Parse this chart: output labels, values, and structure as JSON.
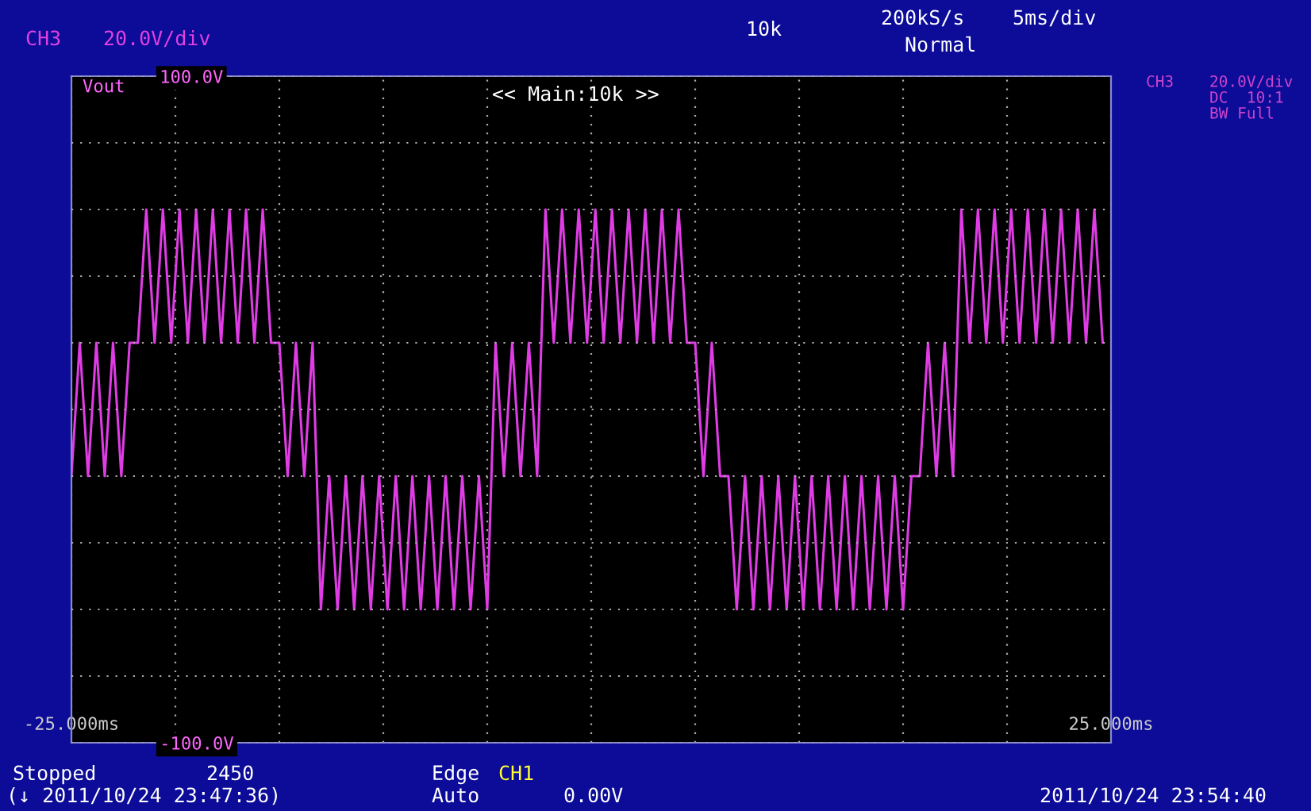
{
  "chart_data": {
    "type": "line",
    "series": [
      {
        "color": "#e03ce6",
        "x": [
          -25.0,
          -24.6,
          -24.2,
          -23.8,
          -23.4,
          -23.0,
          -22.6,
          -22.2,
          -21.8,
          -21.4,
          -21.0,
          -20.6,
          -20.2,
          -19.8,
          -19.4,
          -19.0,
          -18.6,
          -18.2,
          -17.8,
          -17.4,
          -17.0,
          -16.6,
          -16.2,
          -15.8,
          -15.4,
          -15.0,
          -14.6,
          -14.2,
          -13.8,
          -13.4,
          -13.0,
          -12.6,
          -12.2,
          -11.8,
          -11.4,
          -11.0,
          -10.6,
          -10.2,
          -9.8,
          -9.4,
          -9.0,
          -8.6,
          -8.2,
          -7.8,
          -7.4,
          -7.0,
          -6.6,
          -6.2,
          -5.8,
          -5.4,
          -5.0,
          -4.6,
          -4.2,
          -3.8,
          -3.4,
          -3.0,
          -2.6,
          -2.2,
          -1.8,
          -1.4,
          -1.0,
          -0.6,
          -0.2,
          0.2,
          0.6,
          1.0,
          1.4,
          1.8,
          2.2,
          2.6,
          3.0,
          3.4,
          3.8,
          4.2,
          4.6,
          5.0,
          5.4,
          5.8,
          6.2,
          6.6,
          7.0,
          7.4,
          7.8,
          8.2,
          8.6,
          9.0,
          9.4,
          9.8,
          10.2,
          10.6,
          11.0,
          11.4,
          11.8,
          12.2,
          12.6,
          13.0,
          13.4,
          13.8,
          14.2,
          14.6,
          15.0,
          15.4,
          15.8,
          16.2,
          16.6,
          17.0,
          17.4,
          17.8,
          18.2,
          18.6,
          19.0,
          19.4,
          19.8,
          20.2,
          20.6,
          21.0,
          21.4,
          21.8,
          22.2,
          22.6,
          23.0,
          23.4,
          23.8,
          24.2,
          24.6
        ],
        "values": [
          -20,
          20,
          -20,
          20,
          -20,
          20,
          -20,
          20,
          20,
          60,
          20,
          60,
          20,
          60,
          20,
          60,
          20,
          60,
          20,
          60,
          20,
          60,
          20,
          60,
          20,
          20,
          -20,
          20,
          -20,
          20,
          -60,
          -20,
          -60,
          -20,
          -60,
          -20,
          -60,
          -20,
          -60,
          -20,
          -60,
          -20,
          -60,
          -20,
          -60,
          -20,
          -60,
          -20,
          -60,
          -20,
          -60,
          20,
          -20,
          20,
          -20,
          20,
          -20,
          60,
          20,
          60,
          20,
          60,
          20,
          60,
          20,
          60,
          20,
          60,
          20,
          60,
          20,
          60,
          20,
          60,
          20,
          20,
          -20,
          20,
          -20,
          -20,
          -60,
          -20,
          -60,
          -20,
          -60,
          -20,
          -60,
          -20,
          -60,
          -20,
          -60,
          -20,
          -60,
          -20,
          -60,
          -20,
          -60,
          -20,
          -60,
          -20,
          -60,
          -20,
          -20,
          20,
          -20,
          20,
          -20,
          60,
          20,
          60,
          20,
          60,
          20,
          60,
          20,
          60,
          20,
          60,
          20,
          60,
          20,
          60,
          20,
          60,
          20
        ]
      }
    ],
    "xlim": [
      -25,
      25
    ],
    "ylim": [
      -100,
      100
    ],
    "xticks": [
      {
        "value": -25,
        "label": "-25.000ms"
      },
      {
        "value": -20,
        "label": null
      },
      {
        "value": -15,
        "label": null
      },
      {
        "value": -10,
        "label": null
      },
      {
        "value": -5,
        "label": null
      },
      {
        "value": 0,
        "label": null
      },
      {
        "value": 5,
        "label": null
      },
      {
        "value": 10,
        "label": null
      },
      {
        "value": 15,
        "label": null
      },
      {
        "value": 20,
        "label": null
      },
      {
        "value": 25,
        "label": "25.000ms"
      }
    ],
    "yticks": [
      {
        "value": -100,
        "label": "-100.0V"
      },
      {
        "value": -80,
        "label": null
      },
      {
        "value": -60,
        "label": null
      },
      {
        "value": -40,
        "label": null
      },
      {
        "value": -20,
        "label": null
      },
      {
        "value": 0,
        "label": null
      },
      {
        "value": 20,
        "label": null
      },
      {
        "value": 40,
        "label": null
      },
      {
        "value": 60,
        "label": null
      },
      {
        "value": 80,
        "label": null
      },
      {
        "value": 100,
        "label": "100.0V"
      }
    ],
    "grid": true,
    "annotations": [
      "CH3",
      "20.0V/div",
      "200kS/s",
      "5ms/div",
      "Normal",
      "Vout",
      "<< Main:10k >>",
      "10k",
      "CH3",
      "20.0V/div",
      "DC  10:1",
      "BW Full",
      "Stopped",
      "2450",
      "(↓ 2011/10/24 23:47:36)",
      "Edge",
      "CH1",
      "Auto",
      "0.00V",
      "2011/10/24 23:54:40"
    ]
  }
}
